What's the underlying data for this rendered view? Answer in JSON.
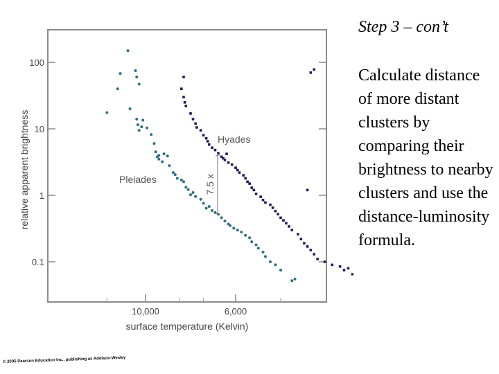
{
  "slide": {
    "heading": "Step 3 – con’t",
    "body": "Calculate distance of more distant clusters by comparing their brightness to nearby clusters and use the distance-luminosity formula.",
    "copyright": "© 2005 Pearson Education Inc., publishing as Addison-Wesley"
  },
  "chart_data": {
    "type": "scatter",
    "xlabel": "surface temperature (Kelvin)",
    "ylabel": "relative apparent brightness",
    "x_ticks": [
      "10,000",
      "6,000"
    ],
    "y_ticks": [
      "100",
      "10",
      "1",
      "0.1"
    ],
    "y_scale": "log",
    "y_tick_values": [
      100,
      10,
      1,
      0.1
    ],
    "grid": false,
    "annotation": {
      "text": "7.5 x",
      "from_y": 4.0,
      "to_y": 0.53
    },
    "colors": {
      "pleiades": "#2f6f86",
      "hyades": "#1d1f5e",
      "frame": "#8a8a8a"
    },
    "series": [
      {
        "name": "Pleiades",
        "points": [
          [
            14000,
            17.5
          ],
          [
            12600,
            40
          ],
          [
            12300,
            68
          ],
          [
            11500,
            150
          ],
          [
            11300,
            20
          ],
          [
            10800,
            75
          ],
          [
            10700,
            60
          ],
          [
            10500,
            47
          ],
          [
            10700,
            14
          ],
          [
            10600,
            11.5
          ],
          [
            10200,
            13.5
          ],
          [
            10300,
            10.7
          ],
          [
            10500,
            9.5
          ],
          [
            9900,
            10.3
          ],
          [
            9600,
            8.2
          ],
          [
            9400,
            6
          ],
          [
            9300,
            4.5
          ],
          [
            9200,
            3.8
          ],
          [
            9100,
            3.5
          ],
          [
            8900,
            3.2
          ],
          [
            9100,
            4
          ],
          [
            8800,
            4.2
          ],
          [
            8600,
            3.9
          ],
          [
            8500,
            2.8
          ],
          [
            8300,
            2.2
          ],
          [
            8200,
            2.05
          ],
          [
            8100,
            1.8
          ],
          [
            7900,
            1.7
          ],
          [
            7800,
            1.6
          ],
          [
            7700,
            1.32
          ],
          [
            7600,
            1.22
          ],
          [
            7500,
            1.02
          ],
          [
            7400,
            1.1
          ],
          [
            7300,
            0.96
          ],
          [
            7100,
            0.87
          ],
          [
            7000,
            0.76
          ],
          [
            6900,
            0.64
          ],
          [
            6800,
            0.68
          ],
          [
            6700,
            0.59
          ],
          [
            6600,
            0.55
          ],
          [
            6500,
            0.52
          ],
          [
            6400,
            0.46
          ],
          [
            6300,
            0.41
          ],
          [
            6200,
            0.37
          ],
          [
            6150,
            0.35
          ],
          [
            6050,
            0.32
          ],
          [
            5950,
            0.3
          ],
          [
            5850,
            0.28
          ],
          [
            5750,
            0.25
          ],
          [
            5650,
            0.23
          ],
          [
            5600,
            0.2
          ],
          [
            5500,
            0.18
          ],
          [
            5450,
            0.16
          ],
          [
            5350,
            0.14
          ],
          [
            5300,
            0.12
          ],
          [
            5200,
            0.1
          ],
          [
            5100,
            0.09
          ],
          [
            5000,
            0.075
          ],
          [
            4800,
            0.052
          ],
          [
            4750,
            0.055
          ]
        ]
      },
      {
        "name": "Hyades",
        "points": [
          [
            7800,
            60
          ],
          [
            7900,
            40
          ],
          [
            7800,
            30
          ],
          [
            7750,
            25
          ],
          [
            7700,
            22
          ],
          [
            7500,
            17
          ],
          [
            7400,
            14
          ],
          [
            7300,
            12
          ],
          [
            7250,
            10.5
          ],
          [
            7100,
            9.5
          ],
          [
            7000,
            8
          ],
          [
            6900,
            7.2
          ],
          [
            6850,
            6.5
          ],
          [
            6800,
            5.8
          ],
          [
            6700,
            5.2
          ],
          [
            6600,
            4.8
          ],
          [
            6500,
            4.3
          ],
          [
            6400,
            3.8
          ],
          [
            6300,
            3.4
          ],
          [
            6200,
            3.1
          ],
          [
            6100,
            2.9
          ],
          [
            6000,
            2.6
          ],
          [
            5950,
            2.4
          ],
          [
            5900,
            2.2
          ],
          [
            5800,
            2.0
          ],
          [
            5750,
            1.8
          ],
          [
            5700,
            1.6
          ],
          [
            5650,
            1.5
          ],
          [
            5600,
            1.3
          ],
          [
            5550,
            1.2
          ],
          [
            5500,
            1.05
          ],
          [
            5400,
            0.95
          ],
          [
            5350,
            0.85
          ],
          [
            5300,
            0.78
          ],
          [
            5200,
            0.72
          ],
          [
            5150,
            0.65
          ],
          [
            5100,
            0.58
          ],
          [
            5050,
            0.52
          ],
          [
            5000,
            0.46
          ],
          [
            4950,
            0.42
          ],
          [
            4900,
            0.38
          ],
          [
            4850,
            0.34
          ],
          [
            4800,
            0.3
          ],
          [
            4700,
            0.26
          ],
          [
            4650,
            0.22
          ],
          [
            4600,
            0.19
          ],
          [
            4550,
            0.17
          ],
          [
            4500,
            0.15
          ],
          [
            4450,
            0.13
          ],
          [
            4400,
            0.11
          ],
          [
            4300,
            0.1
          ],
          [
            4200,
            0.09
          ],
          [
            4100,
            0.085
          ],
          [
            4050,
            0.075
          ],
          [
            4000,
            0.08
          ],
          [
            3950,
            0.065
          ],
          [
            3900,
            0.055
          ],
          [
            3850,
            0.05
          ],
          [
            3700,
            0.075
          ],
          [
            4550,
            1.2
          ],
          [
            4450,
            78
          ],
          [
            4500,
            70
          ],
          [
            6350,
            3.6
          ],
          [
            6250,
            4.2
          ]
        ]
      }
    ]
  }
}
